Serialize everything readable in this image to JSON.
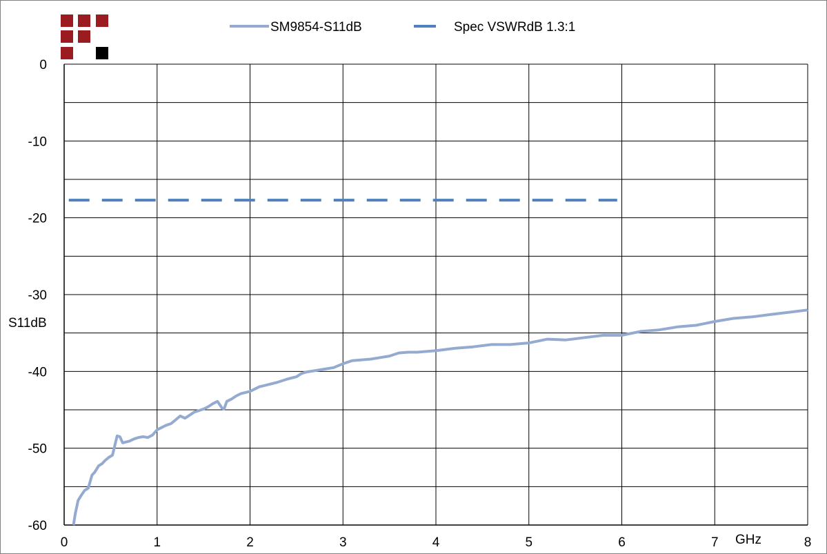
{
  "logo": {
    "name": "brand-logo",
    "colors": {
      "primary": "#9b1c20",
      "secondary": "#000000"
    }
  },
  "chart_data": {
    "type": "line",
    "title": "",
    "xlabel": "GHz",
    "ylabel": "S11dB",
    "xlim": [
      0,
      8
    ],
    "ylim": [
      -60,
      0
    ],
    "xticks": [
      "0",
      "1",
      "2",
      "3",
      "4",
      "5",
      "6",
      "7",
      "8"
    ],
    "yticks": [
      "0",
      "-10",
      "-20",
      "-30",
      "-40",
      "-50",
      "-60"
    ],
    "grid": true,
    "legend_position": "top",
    "series": [
      {
        "name": "SM9854-S11dB",
        "style": "solid",
        "color": "#94aad0",
        "x": [
          0.1,
          0.12,
          0.15,
          0.18,
          0.22,
          0.26,
          0.3,
          0.33,
          0.37,
          0.41,
          0.44,
          0.48,
          0.52,
          0.57,
          0.6,
          0.63,
          0.66,
          0.7,
          0.75,
          0.8,
          0.85,
          0.9,
          0.95,
          1.0,
          1.05,
          1.1,
          1.15,
          1.2,
          1.25,
          1.3,
          1.35,
          1.4,
          1.45,
          1.5,
          1.55,
          1.6,
          1.65,
          1.7,
          1.72,
          1.75,
          1.8,
          1.85,
          1.9,
          2.0,
          2.1,
          2.2,
          2.3,
          2.4,
          2.5,
          2.55,
          2.6,
          2.7,
          2.8,
          2.9,
          3.0,
          3.1,
          3.2,
          3.3,
          3.4,
          3.5,
          3.6,
          3.7,
          3.8,
          3.9,
          4.0,
          4.2,
          4.4,
          4.6,
          4.8,
          5.0,
          5.2,
          5.4,
          5.6,
          5.8,
          6.0,
          6.2,
          6.4,
          6.6,
          6.8,
          7.0,
          7.2,
          7.4,
          7.6,
          7.8,
          8.0
        ],
        "y": [
          -60,
          -58.5,
          -56.8,
          -56.2,
          -55.5,
          -55.2,
          -53.5,
          -53.1,
          -52.3,
          -52.0,
          -51.6,
          -51.2,
          -50.9,
          -48.4,
          -48.5,
          -49.3,
          -49.2,
          -49.1,
          -48.8,
          -48.6,
          -48.5,
          -48.6,
          -48.3,
          -47.6,
          -47.3,
          -47.0,
          -46.8,
          -46.3,
          -45.8,
          -46.1,
          -45.7,
          -45.3,
          -45.1,
          -44.9,
          -44.6,
          -44.2,
          -43.9,
          -44.8,
          -44.9,
          -43.9,
          -43.6,
          -43.2,
          -42.9,
          -42.6,
          -42.0,
          -41.7,
          -41.4,
          -41.0,
          -40.7,
          -40.3,
          -40.1,
          -39.9,
          -39.7,
          -39.5,
          -39.0,
          -38.6,
          -38.5,
          -38.4,
          -38.2,
          -38.0,
          -37.6,
          -37.5,
          -37.5,
          -37.4,
          -37.3,
          -37.0,
          -36.8,
          -36.5,
          -36.5,
          -36.3,
          -35.8,
          -35.9,
          -35.6,
          -35.3,
          -35.3,
          -34.8,
          -34.6,
          -34.2,
          -34.0,
          -33.5,
          -33.1,
          -32.9,
          -32.6,
          -32.3,
          -32.0
        ]
      },
      {
        "name": "Spec VSWRdB 1.3:1",
        "style": "dashed",
        "color": "#4f81bd",
        "x": [
          0.05,
          5.95
        ],
        "y": [
          -17.7,
          -17.7
        ]
      }
    ]
  }
}
